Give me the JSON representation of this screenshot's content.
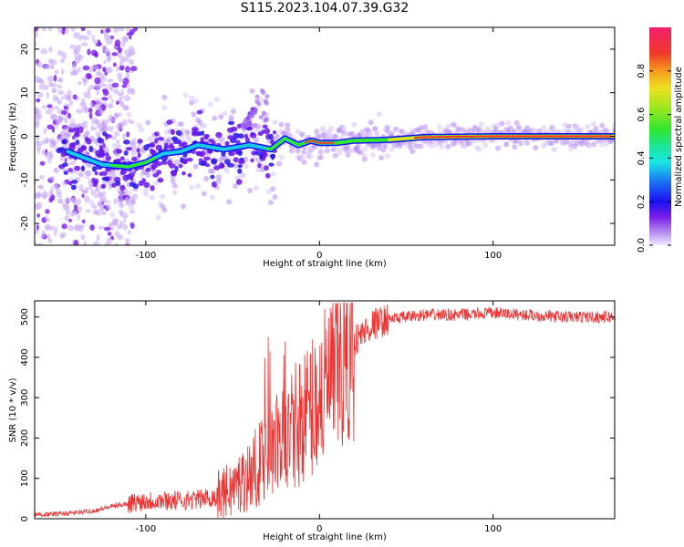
{
  "title": "S115.2023.104.07.39.G32",
  "chart_data": [
    {
      "type": "heatmap",
      "xlabel": "Height of straight line (km)",
      "ylabel": "Frequency (Hz)",
      "xlim": [
        -164,
        170
      ],
      "ylim": [
        -25,
        25
      ],
      "xticks": [
        -100,
        0,
        100
      ],
      "yticks": [
        -20,
        -10,
        0,
        10,
        20
      ],
      "colorbar": {
        "label": "Normalized spectral amplitude",
        "range": [
          0,
          1
        ],
        "ticks": [
          "0.0",
          "0.2",
          "0.4",
          "0.6",
          "0.8"
        ]
      },
      "ridge": [
        {
          "x": -145,
          "y": -3.5
        },
        {
          "x": -125,
          "y": -6.5
        },
        {
          "x": -110,
          "y": -7
        },
        {
          "x": -100,
          "y": -6
        },
        {
          "x": -90,
          "y": -4
        },
        {
          "x": -80,
          "y": -3.5
        },
        {
          "x": -70,
          "y": -2
        },
        {
          "x": -55,
          "y": -3
        },
        {
          "x": -40,
          "y": -2
        },
        {
          "x": -28,
          "y": -3
        },
        {
          "x": -20,
          "y": -0.5
        },
        {
          "x": -12,
          "y": -2
        },
        {
          "x": -5,
          "y": -1
        },
        {
          "x": 0,
          "y": -1.5
        },
        {
          "x": 10,
          "y": -1.5
        },
        {
          "x": 20,
          "y": -1
        },
        {
          "x": 40,
          "y": -0.8
        },
        {
          "x": 60,
          "y": -0.2
        },
        {
          "x": 100,
          "y": 0
        },
        {
          "x": 170,
          "y": 0
        }
      ]
    },
    {
      "type": "line",
      "xlabel": "Height of straight line (km)",
      "ylabel": "SNR (10 * v/v)",
      "xlim": [
        -164,
        170
      ],
      "ylim": [
        0,
        540
      ],
      "xticks": [
        -100,
        0,
        100
      ],
      "yticks": [
        0,
        100,
        200,
        300,
        400,
        500
      ],
      "color": "#ee3333",
      "series": [
        {
          "x": [
            -164,
            -150,
            -140,
            -130,
            -120,
            -110,
            -100,
            -90,
            -80,
            -70,
            -60,
            -50,
            -40,
            -30,
            -20,
            -10,
            0,
            10,
            20,
            30,
            40,
            50,
            60,
            80,
            100,
            120,
            140,
            160,
            170
          ],
          "values": [
            10,
            12,
            15,
            20,
            30,
            38,
            45,
            45,
            45,
            48,
            55,
            75,
            110,
            160,
            200,
            250,
            300,
            360,
            440,
            480,
            495,
            500,
            505,
            505,
            510,
            505,
            500,
            500,
            500
          ]
        }
      ]
    }
  ]
}
